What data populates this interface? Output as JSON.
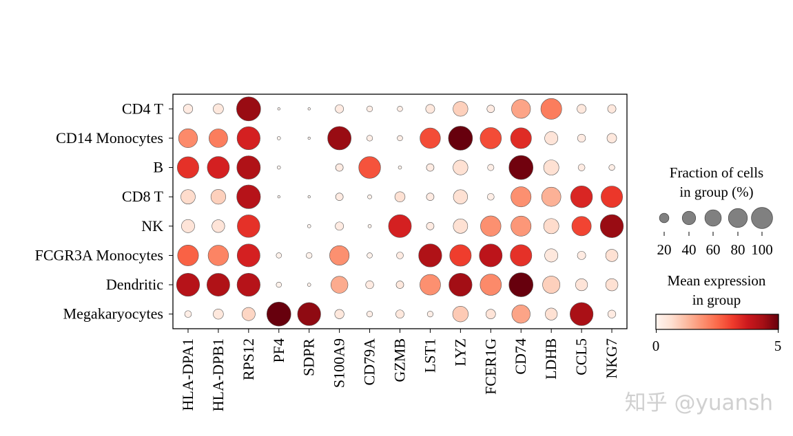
{
  "chart_data": {
    "type": "scatter",
    "subtype": "dotplot",
    "genes": [
      "HLA-DPA1",
      "HLA-DPB1",
      "RPS12",
      "PF4",
      "SDPR",
      "S100A9",
      "CD79A",
      "GZMB",
      "LST1",
      "LYZ",
      "FCER1G",
      "CD74",
      "LDHB",
      "CCL5",
      "NKG7"
    ],
    "groups": [
      "CD4 T",
      "CD14 Monocytes",
      "B",
      "CD8 T",
      "NK",
      "FCGR3A Monocytes",
      "Dendritic",
      "Megakaryocytes"
    ],
    "fraction_percent": [
      [
        15,
        18,
        100,
        1,
        1,
        12,
        6,
        5,
        14,
        38,
        10,
        62,
        75,
        14,
        12
      ],
      [
        62,
        60,
        92,
        2,
        1,
        95,
        6,
        5,
        72,
        100,
        78,
        75,
        30,
        11,
        16
      ],
      [
        80,
        84,
        95,
        2,
        0,
        10,
        82,
        2,
        10,
        38,
        7,
        100,
        40,
        8,
        6
      ],
      [
        36,
        38,
        97,
        1,
        1,
        10,
        3,
        18,
        10,
        35,
        8,
        70,
        64,
        82,
        80
      ],
      [
        30,
        28,
        88,
        0,
        2,
        12,
        2,
        90,
        10,
        36,
        72,
        70,
        40,
        65,
        92
      ],
      [
        75,
        72,
        90,
        5,
        6,
        66,
        5,
        8,
        92,
        80,
        90,
        80,
        30,
        12,
        26
      ],
      [
        92,
        90,
        92,
        5,
        2,
        50,
        11,
        10,
        74,
        92,
        78,
        100,
        52,
        25,
        26
      ],
      [
        8,
        18,
        30,
        100,
        92,
        15,
        6,
        12,
        6,
        42,
        16,
        58,
        25,
        92,
        11
      ]
    ],
    "mean_expression": [
      [
        0.3,
        0.4,
        4.5,
        0,
        0,
        0.3,
        0.2,
        0.2,
        0.4,
        0.9,
        0.3,
        1.6,
        2.2,
        0.4,
        0.4
      ],
      [
        2.0,
        2.2,
        3.6,
        0,
        0,
        4.5,
        0.2,
        0.2,
        2.9,
        5.0,
        2.9,
        3.4,
        0.5,
        0.3,
        0.4
      ],
      [
        3.3,
        3.6,
        4.2,
        0,
        0,
        0.3,
        2.8,
        0.1,
        0.3,
        0.6,
        0.2,
        4.9,
        0.6,
        0.3,
        0.2
      ],
      [
        0.7,
        0.9,
        4.1,
        0,
        0,
        0.3,
        0.1,
        0.6,
        0.3,
        0.6,
        0.2,
        1.9,
        1.4,
        3.5,
        3.2
      ],
      [
        0.5,
        0.5,
        3.3,
        0,
        0,
        0.3,
        0.1,
        3.6,
        0.3,
        0.6,
        1.9,
        1.8,
        0.7,
        3.0,
        4.5
      ],
      [
        2.6,
        2.1,
        3.6,
        0.1,
        0.1,
        1.9,
        0.1,
        0.3,
        4.2,
        3.1,
        4.0,
        3.3,
        0.4,
        0.3,
        0.6
      ],
      [
        4.1,
        4.2,
        4.1,
        0.1,
        0.1,
        1.5,
        0.3,
        0.4,
        1.9,
        4.4,
        2.0,
        5.0,
        0.9,
        0.5,
        0.6
      ],
      [
        0.2,
        0.4,
        0.8,
        5.0,
        4.6,
        0.4,
        0.2,
        0.4,
        0.2,
        1.0,
        0.5,
        1.6,
        0.6,
        4.3,
        0.3
      ]
    ],
    "size_legend": {
      "title_line1": "Fraction of cells",
      "title_line2": "in group (%)",
      "values": [
        20,
        40,
        60,
        80,
        100
      ],
      "labels": [
        "20",
        "40",
        "60",
        "80",
        "100"
      ],
      "color": "#808080"
    },
    "color_legend": {
      "title_line1": "Mean expression",
      "title_line2": "in group",
      "min_label": "0",
      "max_label": "5",
      "range": [
        0,
        5
      ],
      "colormap": "Reds",
      "stops": [
        "#fff5f0",
        "#fee0d2",
        "#fcbba1",
        "#fc9272",
        "#fb6a4a",
        "#ef3b2c",
        "#cb181d",
        "#a50f15",
        "#67000d"
      ]
    }
  },
  "watermark": "知乎 @yuansh"
}
